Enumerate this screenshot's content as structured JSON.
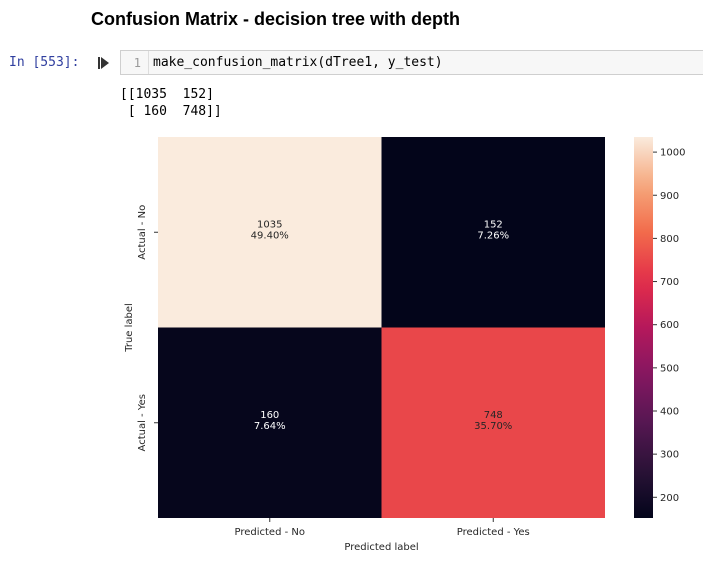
{
  "heading": "Confusion Matrix - decision tree with depth",
  "cell": {
    "prompt": "In [553]:",
    "line_number": "1",
    "code": "make_confusion_matrix(dTree1, y_test)",
    "output_lines": [
      "[[1035  152]",
      " [ 160  748]]"
    ]
  },
  "icons": {
    "run": "run-cell-icon"
  },
  "chart_data": {
    "type": "heatmap",
    "title": "",
    "xlabel": "Predicted label",
    "ylabel": "True label",
    "x_categories": [
      "Predicted - No",
      "Predicted - Yes"
    ],
    "y_categories": [
      "Actual - No",
      "Actual - Yes"
    ],
    "values": [
      [
        1035,
        152
      ],
      [
        160,
        748
      ]
    ],
    "annotations": [
      [
        "1035\n49.40%",
        "152\n7.26%"
      ],
      [
        "160\n7.64%",
        "748\n35.70%"
      ]
    ],
    "colorbar": {
      "min": 152,
      "max": 1035,
      "ticks": [
        200,
        300,
        400,
        500,
        600,
        700,
        800,
        900,
        1000
      ],
      "colormap": "rocket"
    }
  }
}
